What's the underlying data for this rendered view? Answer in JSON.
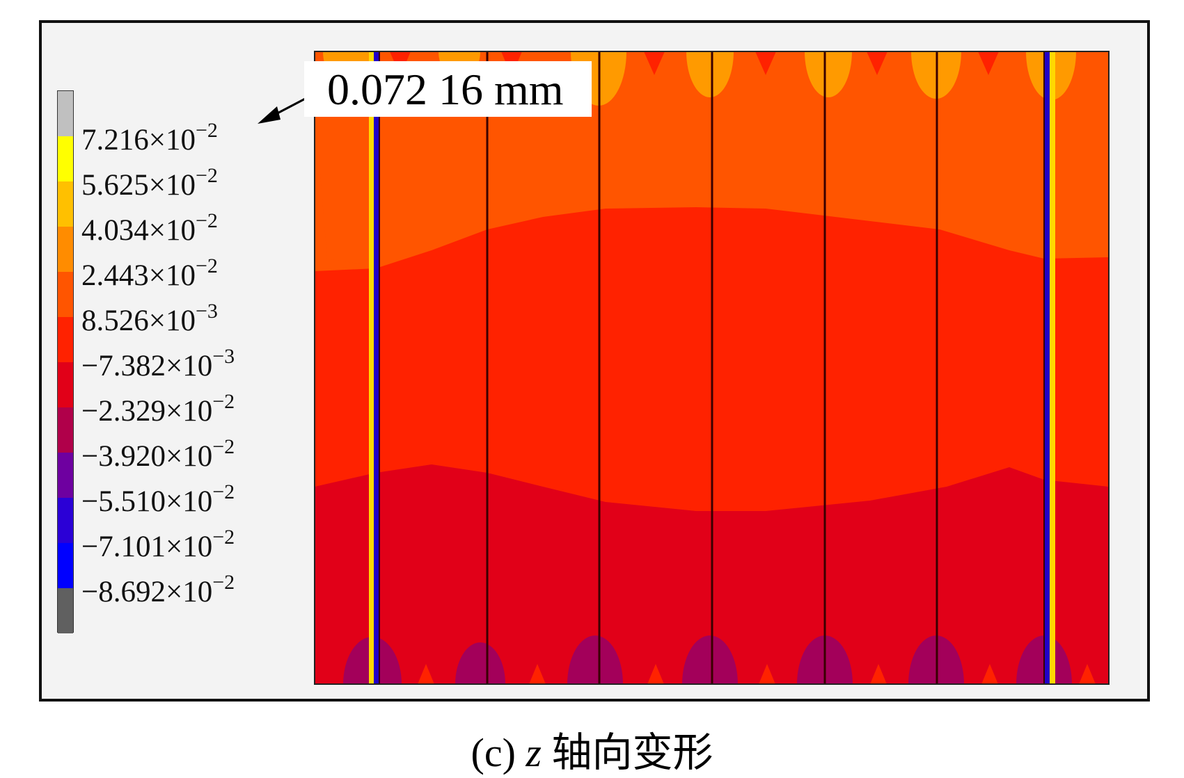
{
  "figure": {
    "callout": "0.072 16 mm",
    "caption_prefix": "(c)",
    "caption_var": "z",
    "caption_text": "轴向变形"
  },
  "legend": {
    "entries": [
      {
        "mantissa": "7.216",
        "exp": "−2",
        "color": "#c0c0c0"
      },
      {
        "mantissa": "5.625",
        "exp": "−2",
        "color": "#ffff00"
      },
      {
        "mantissa": "4.034",
        "exp": "−2",
        "color": "#ffc000"
      },
      {
        "mantissa": "2.443",
        "exp": "−2",
        "color": "#ff8c00"
      },
      {
        "mantissa": "8.526",
        "exp": "−3",
        "color": "#ff5500"
      },
      {
        "mantissa": "−7.382",
        "exp": "−3",
        "color": "#ff2200"
      },
      {
        "mantissa": "−2.329",
        "exp": "−2",
        "color": "#e10018"
      },
      {
        "mantissa": "−3.920",
        "exp": "−2",
        "color": "#b0004a"
      },
      {
        "mantissa": "−5.510",
        "exp": "−2",
        "color": "#6e00a0"
      },
      {
        "mantissa": "−7.101",
        "exp": "−2",
        "color": "#2b00d6"
      },
      {
        "mantissa": "−8.692",
        "exp": "−2",
        "color": "#0000ff"
      }
    ],
    "bottom_color": "#606060",
    "times_symbol": "×",
    "base": "10"
  },
  "colors": {
    "frame_bg": "#f3f3f3",
    "top_band": "#ff5500",
    "mid_band": "#ff2200",
    "bottom_band": "#e10018",
    "hot_spot": "#ff9a00",
    "cold_spot": "#a3005a"
  }
}
